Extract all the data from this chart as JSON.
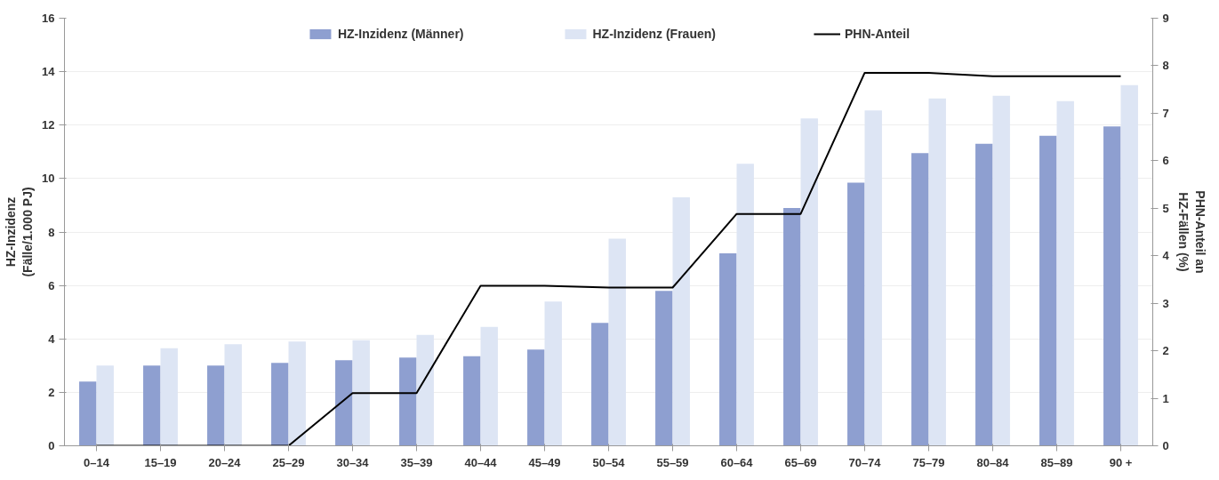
{
  "chart_data": {
    "type": "bar",
    "ylabel": "HZ-Inzidenz\n(Fälle/1.000 PJ)",
    "y2label": "PHN-Anteil an\nHZ-Fällen (%)",
    "categories": [
      "0–14",
      "15–19",
      "20–24",
      "25–29",
      "30–34",
      "35–39",
      "40–44",
      "45–49",
      "50–54",
      "55–59",
      "60–64",
      "65–69",
      "70–74",
      "75–79",
      "80–84",
      "85–89",
      "90 +"
    ],
    "series": [
      {
        "name": "HZ-Inzidenz (Männer)",
        "color": "#8e9fd0",
        "values": [
          2.4,
          3.0,
          3.0,
          3.1,
          3.2,
          3.3,
          3.35,
          3.6,
          4.6,
          5.8,
          7.2,
          8.9,
          9.85,
          10.95,
          11.3,
          11.6,
          11.95
        ]
      },
      {
        "name": "HZ-Inzidenz (Frauen)",
        "color": "#dde5f4",
        "values": [
          3.0,
          3.65,
          3.8,
          3.9,
          3.95,
          4.15,
          4.45,
          5.4,
          7.75,
          9.3,
          10.55,
          12.25,
          12.55,
          13.0,
          13.1,
          12.9,
          13.5
        ]
      },
      {
        "name": "PHN-Anteil",
        "type": "line",
        "axis": "y2",
        "color": "#000000",
        "values": [
          0,
          0,
          0,
          0,
          1.11,
          1.11,
          3.37,
          3.37,
          3.33,
          3.33,
          4.88,
          4.88,
          7.85,
          7.85,
          7.78,
          7.78,
          7.78
        ]
      }
    ],
    "ylim": [
      0,
      16
    ],
    "yticks": [
      0,
      2,
      4,
      6,
      8,
      10,
      12,
      14,
      16
    ],
    "y2lim": [
      0,
      9
    ],
    "y2ticks": [
      0,
      1,
      2,
      3,
      4,
      5,
      6,
      7,
      8,
      9
    ],
    "grid": "y",
    "legend": "top",
    "marker": "none",
    "line_style": "solid"
  }
}
